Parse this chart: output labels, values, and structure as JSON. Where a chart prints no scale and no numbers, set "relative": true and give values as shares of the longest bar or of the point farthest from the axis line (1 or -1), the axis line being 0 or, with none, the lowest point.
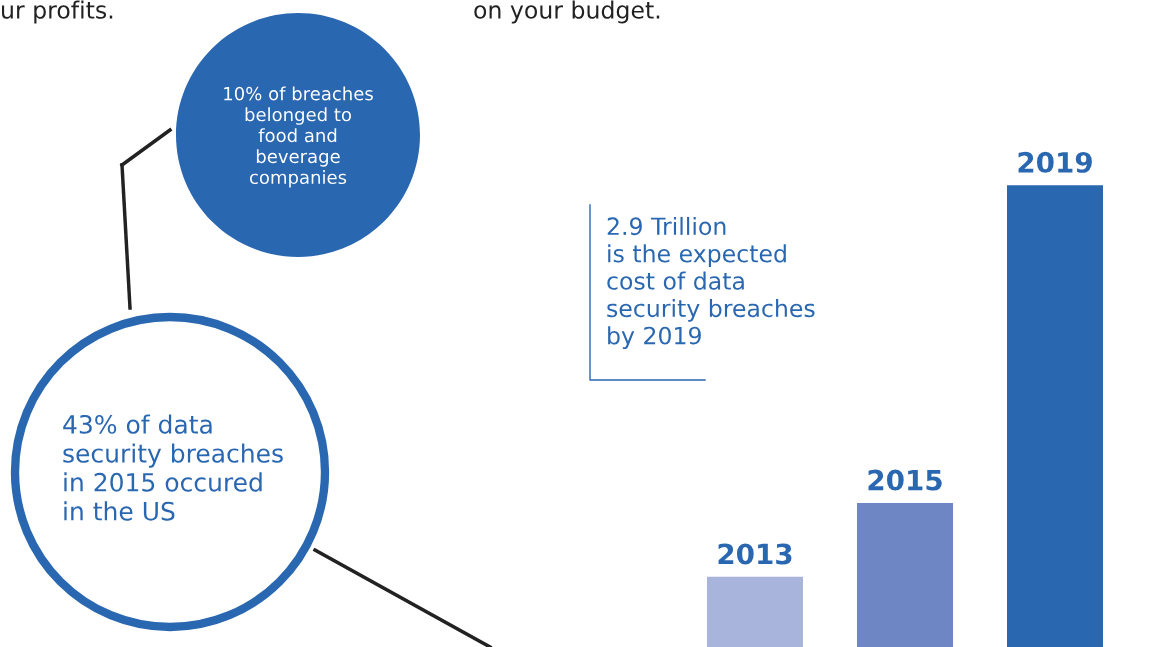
{
  "chart_data": {
    "type": "bar",
    "relative": true,
    "categories": [
      "2013",
      "2015",
      "2019"
    ],
    "values": [
      0.152,
      0.312,
      1
    ],
    "colors": [
      "#a8b4dc",
      "#6e86c4",
      "#2a67b1"
    ],
    "annotations": [
      "ur profits.",
      "on your budget.",
      "10% of breaches\nbelonged to\nfood and\nbeverage\ncompanies",
      "43% of data\nsecurity breaches\nin 2015 occured\nin the US",
      "2.9 Trillion\nis the expected\ncost of data\nsecurity breaches\nby 2019"
    ],
    "legend": false
  }
}
